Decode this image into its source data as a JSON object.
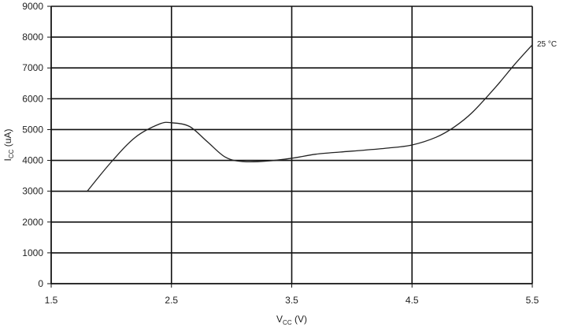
{
  "chart_data": {
    "type": "line",
    "xlabel": {
      "main": "V",
      "sub": "CC",
      "unit": " (V)"
    },
    "ylabel": {
      "main": "I",
      "sub": "CC",
      "unit": " (uA)"
    },
    "xlim": [
      1.5,
      5.5
    ],
    "ylim": [
      0,
      9000
    ],
    "xticks": [
      1.5,
      2.5,
      3.5,
      4.5,
      5.5
    ],
    "xtick_labels": [
      "1.5",
      "2.5",
      "3.5",
      "4.5",
      "5.5"
    ],
    "yticks": [
      0,
      1000,
      2000,
      3000,
      4000,
      5000,
      6000,
      7000,
      8000,
      9000
    ],
    "ytick_labels": [
      "0",
      "1000",
      "2000",
      "3000",
      "4000",
      "5000",
      "6000",
      "7000",
      "8000",
      "9000"
    ],
    "grid": true,
    "series": [
      {
        "name": "25 °C",
        "color": "#222222",
        "x": [
          1.8,
          2.0,
          2.2,
          2.4,
          2.5,
          2.65,
          2.8,
          2.95,
          3.1,
          3.3,
          3.5,
          3.7,
          3.9,
          4.1,
          4.3,
          4.5,
          4.7,
          4.85,
          5.0,
          5.2,
          5.35,
          5.5
        ],
        "y": [
          3000,
          3950,
          4750,
          5180,
          5220,
          5100,
          4600,
          4100,
          3960,
          3980,
          4070,
          4200,
          4270,
          4330,
          4400,
          4500,
          4750,
          5080,
          5550,
          6400,
          7100,
          7750
        ]
      }
    ]
  }
}
